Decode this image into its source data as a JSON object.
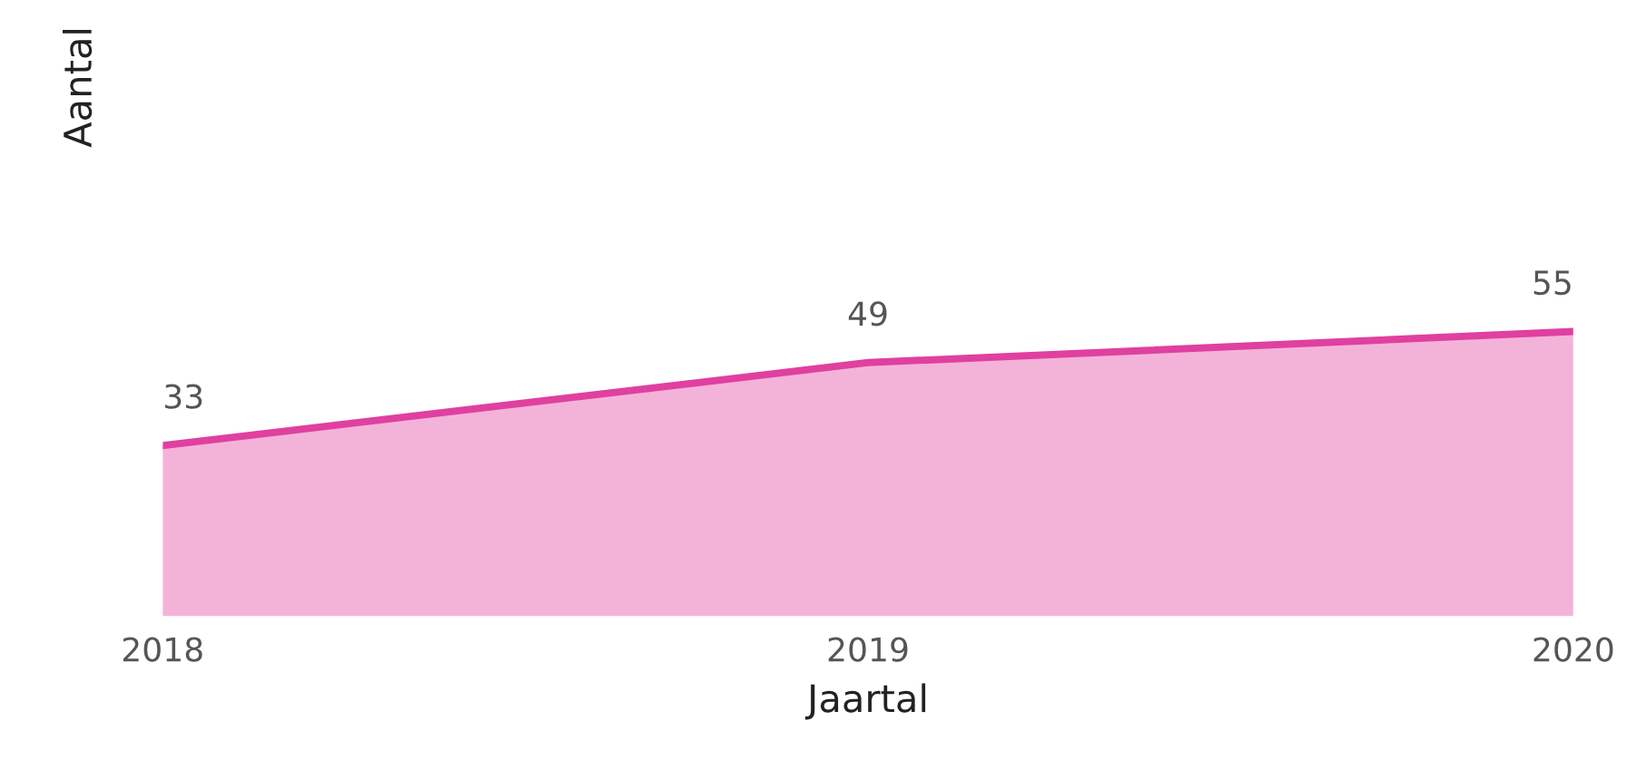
{
  "chart_data": {
    "type": "area",
    "xlabel": "Jaartal",
    "ylabel": "Aantal",
    "categories": [
      "2018",
      "2019",
      "2020"
    ],
    "series": [
      {
        "color": "#e040a0",
        "values": [
          33,
          49,
          55
        ]
      }
    ],
    "data_labels": true,
    "tick_labels": "x",
    "grid": false,
    "legend": false
  }
}
